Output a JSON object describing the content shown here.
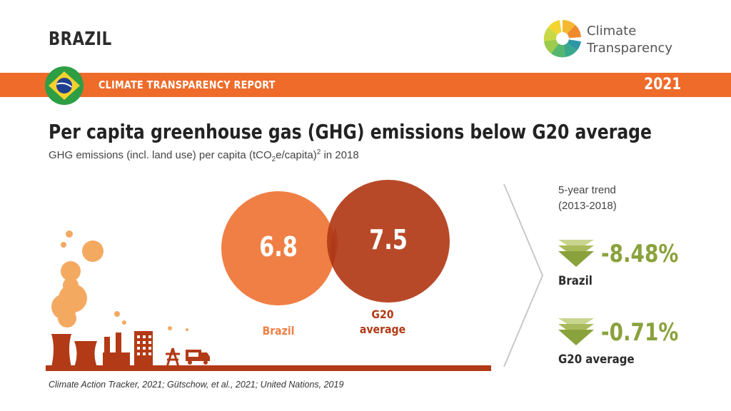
{
  "header": {
    "country": "BRAZIL",
    "logo_text_line1": "Climate",
    "logo_text_line2": "Transparency"
  },
  "band": {
    "title": "CLIMATE TRANSPARENCY REPORT",
    "year": "2021"
  },
  "main": {
    "headline": "Per capita greenhouse gas (GHG) emissions below G20 average",
    "subhead_pre": "GHG emissions (incl. land use) per capita (tCO",
    "subhead_sub": "2",
    "subhead_mid": "e/capita)",
    "subhead_sup": "2",
    "subhead_post": " in 2018"
  },
  "comparison": {
    "brazil": {
      "value": "6.8",
      "label": "Brazil",
      "color": "#f07f45"
    },
    "g20": {
      "value": "7.5",
      "label_line1": "G20",
      "label_line2": "average",
      "color": "#b23a16"
    }
  },
  "trend": {
    "heading_line1": "5-year trend",
    "heading_line2": "(2013-2018)",
    "items": [
      {
        "value": "-8.48%",
        "label": "Brazil",
        "icon": "down-arrow-icon"
      },
      {
        "value": "-0.71%",
        "label": "G20 average",
        "icon": "down-arrow-icon"
      }
    ],
    "accent_color": "#8aa23c"
  },
  "source": "Climate Action Tracker, 2021; Gütschow, et al., 2021; United Nations, 2019",
  "colors": {
    "band": "#ee6b2a",
    "skyline": "#b23a16",
    "smoke": "#f4a961"
  }
}
